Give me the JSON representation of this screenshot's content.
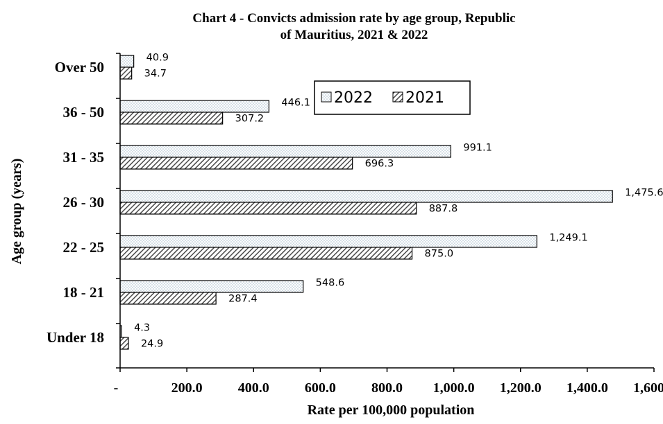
{
  "chart_data": {
    "type": "bar",
    "orientation": "horizontal",
    "title_line1": "Chart 4 - Convicts admission rate by age group, Republic",
    "title_line2": "of Mauritius, 2021  & 2022",
    "xlabel": "Rate per 100,000 population",
    "ylabel": "Age group (years)",
    "categories": [
      "Over 50",
      "36 - 50",
      "31 - 35",
      "26 - 30",
      "22 - 25",
      "18 - 21",
      "Under 18"
    ],
    "series": [
      {
        "name": "2022",
        "pattern": "dots",
        "values": [
          40.9,
          446.1,
          991.1,
          1475.6,
          1249.1,
          548.6,
          4.3
        ],
        "labels": [
          "40.9",
          "446.1",
          "991.1",
          "1,475.6",
          "1,249.1",
          "548.6",
          "4.3"
        ]
      },
      {
        "name": "2021",
        "pattern": "diagonal-hatch",
        "values": [
          34.7,
          307.2,
          696.3,
          887.8,
          875.0,
          287.4,
          24.9
        ],
        "labels": [
          "34.7",
          "307.2",
          "696.3",
          "887.8",
          "875.0",
          "287.4",
          "24.9"
        ]
      }
    ],
    "xlim": [
      0,
      1600
    ],
    "x_ticks": [
      0,
      200,
      400,
      600,
      800,
      1000,
      1200,
      1400,
      1600
    ],
    "x_tick_labels": [
      "-",
      "200.0",
      "400.0",
      "600.0",
      "800.0",
      "1,000.0",
      "1,200.0",
      "1,400.0",
      "1,600.0"
    ],
    "grid": false,
    "legend_position": "top-right",
    "colors": {
      "bar_outline": "#000000",
      "dots_fill": "#9fb6c7",
      "dots_background": "#ffffff",
      "hatch_stroke": "#4a4a4a",
      "hatch_background": "#ffffff"
    }
  }
}
